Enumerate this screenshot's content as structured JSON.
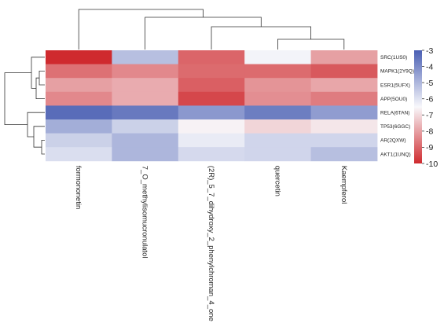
{
  "chart_data": {
    "type": "heatmap",
    "title": "",
    "xlabel": "",
    "ylabel": "",
    "rows": [
      "SRC(1US0)",
      "MAPK1(2Y9Q)",
      "ESR1(5UFX)",
      "APP(5OU0)",
      "RELA(6TAN)",
      "TP53(6GGC)",
      "AR(2QXW)",
      "AKT1(1UNQ)"
    ],
    "columns": [
      "formononetin",
      "7_O_methylisomucronulatol",
      "(2R)_5_7_dihydroxy_2_phenylchroman_4_one",
      "quercetin",
      "Kaempferol"
    ],
    "values": [
      [
        -10.0,
        -5.2,
        -9.0,
        -6.4,
        -8.0
      ],
      [
        -8.8,
        -8.4,
        -8.9,
        -8.9,
        -9.2
      ],
      [
        -8.0,
        -7.8,
        -9.1,
        -8.2,
        -7.9
      ],
      [
        -8.4,
        -7.8,
        -9.5,
        -8.3,
        -8.6
      ],
      [
        -3.3,
        -3.6,
        -4.3,
        -3.7,
        -4.4
      ],
      [
        -4.8,
        -5.6,
        -6.6,
        -7.1,
        -6.8
      ],
      [
        -5.6,
        -5.0,
        -6.2,
        -5.7,
        -5.7
      ],
      [
        -5.9,
        -5.0,
        -5.8,
        -5.7,
        -5.2
      ]
    ],
    "colorbar": {
      "ticks": [
        -3,
        -4,
        -5,
        -6,
        -7,
        -8,
        -9,
        -10
      ],
      "range": [
        -10,
        -3
      ],
      "low_color": "#cf2a2e",
      "mid_color": "#f8f8fb",
      "high_color": "#4a5fb3"
    }
  }
}
